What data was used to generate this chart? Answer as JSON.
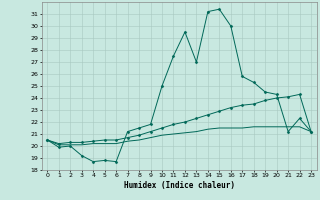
{
  "title": "",
  "xlabel": "Humidex (Indice chaleur)",
  "bg_color": "#c8e8e0",
  "grid_color": "#a8c8c0",
  "line_color": "#006858",
  "xlim": [
    -0.5,
    23.5
  ],
  "ylim": [
    18,
    32
  ],
  "yticks": [
    18,
    19,
    20,
    21,
    22,
    23,
    24,
    25,
    26,
    27,
    28,
    29,
    30,
    31
  ],
  "xticks": [
    0,
    1,
    2,
    3,
    4,
    5,
    6,
    7,
    8,
    9,
    10,
    11,
    12,
    13,
    14,
    15,
    16,
    17,
    18,
    19,
    20,
    21,
    22,
    23
  ],
  "curve1_x": [
    0,
    1,
    2,
    3,
    4,
    5,
    6,
    7,
    8,
    9,
    10,
    11,
    12,
    13,
    14,
    15,
    16,
    17,
    18,
    19,
    20,
    21,
    22,
    23
  ],
  "curve1_y": [
    20.5,
    19.9,
    20.0,
    19.2,
    18.7,
    18.8,
    18.7,
    21.2,
    21.5,
    21.8,
    25.0,
    27.5,
    29.5,
    27.0,
    31.2,
    31.4,
    30.0,
    25.8,
    25.3,
    24.5,
    24.3,
    21.2,
    22.3,
    21.2
  ],
  "curve2_x": [
    0,
    1,
    2,
    3,
    4,
    5,
    6,
    7,
    8,
    9,
    10,
    11,
    12,
    13,
    14,
    15,
    16,
    17,
    18,
    19,
    20,
    21,
    22,
    23
  ],
  "curve2_y": [
    20.5,
    20.2,
    20.3,
    20.3,
    20.4,
    20.5,
    20.5,
    20.7,
    20.9,
    21.2,
    21.5,
    21.8,
    22.0,
    22.3,
    22.6,
    22.9,
    23.2,
    23.4,
    23.5,
    23.8,
    24.0,
    24.1,
    24.3,
    21.2
  ],
  "curve3_x": [
    0,
    1,
    2,
    3,
    4,
    5,
    6,
    7,
    8,
    9,
    10,
    11,
    12,
    13,
    14,
    15,
    16,
    17,
    18,
    19,
    20,
    21,
    22,
    23
  ],
  "curve3_y": [
    20.5,
    20.1,
    20.1,
    20.1,
    20.2,
    20.2,
    20.2,
    20.4,
    20.5,
    20.7,
    20.9,
    21.0,
    21.1,
    21.2,
    21.4,
    21.5,
    21.5,
    21.5,
    21.6,
    21.6,
    21.6,
    21.6,
    21.6,
    21.2
  ],
  "xlabel_fontsize": 5.5,
  "tick_fontsize": 4.5,
  "lw": 0.7,
  "ms": 1.5
}
